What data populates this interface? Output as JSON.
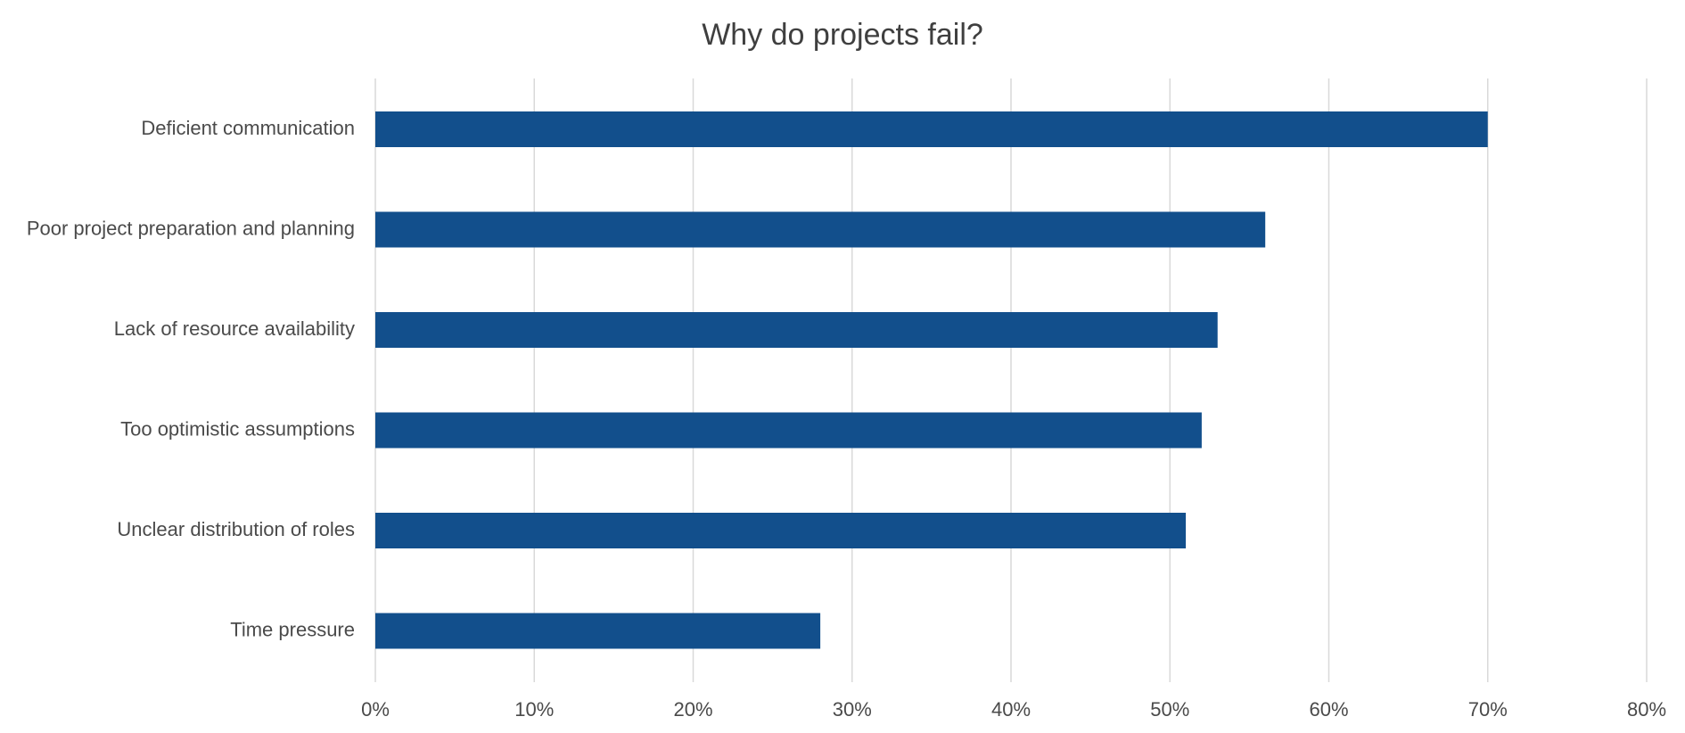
{
  "chart_data": {
    "type": "bar",
    "orientation": "horizontal",
    "title": "Why do projects fail?",
    "xlabel": "",
    "ylabel": "",
    "categories": [
      "Deficient communication",
      "Poor project preparation and planning",
      "Lack of resource availability",
      "Too optimistic assumptions",
      "Unclear distribution of roles",
      "Time pressure"
    ],
    "values": [
      0.7,
      0.56,
      0.53,
      0.52,
      0.51,
      0.28
    ],
    "xlim": [
      0,
      0.8
    ],
    "ticks": [
      0,
      0.1,
      0.2,
      0.3,
      0.4,
      0.5,
      0.6,
      0.7,
      0.8
    ],
    "tick_labels": [
      "0%",
      "10%",
      "20%",
      "30%",
      "40%",
      "50%",
      "60%",
      "70%",
      "80%"
    ],
    "grid": true,
    "legend": "none",
    "bar_color": "#124f8c"
  }
}
